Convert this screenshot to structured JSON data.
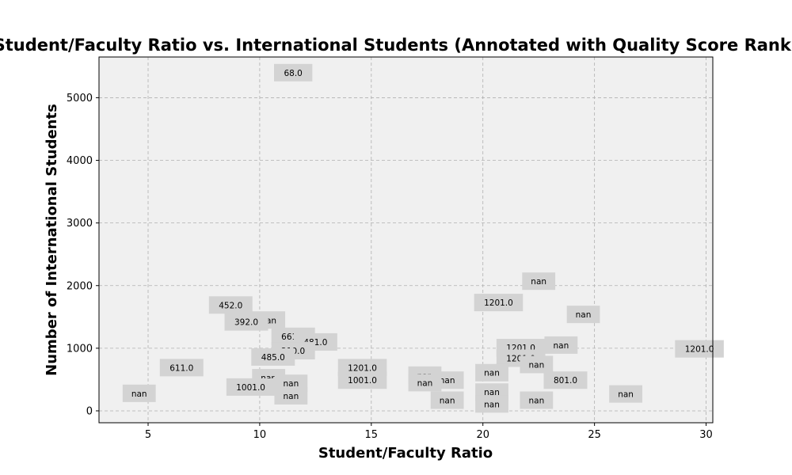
{
  "chart_data": {
    "type": "scatter",
    "title": "Student/Faculty Ratio vs. International Students (Annotated with Quality Score Rank)",
    "xlabel": "Student/Faculty Ratio",
    "ylabel": "Number of International Students",
    "xlim": [
      2.8,
      30.3
    ],
    "ylim": [
      -190,
      5650
    ],
    "xticks": [
      5,
      10,
      15,
      20,
      25,
      30
    ],
    "yticks": [
      0,
      1000,
      2000,
      3000,
      4000,
      5000
    ],
    "grid": true,
    "background_color": "#f0f0f0",
    "annotation_color": "#d3d3d3",
    "points": [
      {
        "x": 11.5,
        "y": 5400,
        "label": "68.0"
      },
      {
        "x": 22.5,
        "y": 2070,
        "label": "nan"
      },
      {
        "x": 20.7,
        "y": 1730,
        "label": "1201.0"
      },
      {
        "x": 8.7,
        "y": 1690,
        "label": "452.0"
      },
      {
        "x": 24.5,
        "y": 1540,
        "label": "nan"
      },
      {
        "x": 10.4,
        "y": 1450,
        "label": "nan"
      },
      {
        "x": 9.4,
        "y": 1420,
        "label": "392.0"
      },
      {
        "x": 11.5,
        "y": 1190,
        "label": "661.0"
      },
      {
        "x": 12.5,
        "y": 1100,
        "label": "481.0"
      },
      {
        "x": 23.5,
        "y": 1050,
        "label": "nan"
      },
      {
        "x": 21.7,
        "y": 1010,
        "label": "1201.0"
      },
      {
        "x": 29.7,
        "y": 990,
        "label": "1201.0"
      },
      {
        "x": 11.5,
        "y": 960,
        "label": "210.0"
      },
      {
        "x": 10.6,
        "y": 860,
        "label": "485.0"
      },
      {
        "x": 21.7,
        "y": 840,
        "label": "1201.0"
      },
      {
        "x": 22.4,
        "y": 740,
        "label": "nan"
      },
      {
        "x": 6.5,
        "y": 690,
        "label": "611.0"
      },
      {
        "x": 14.6,
        "y": 690,
        "label": "1201.0"
      },
      {
        "x": 20.4,
        "y": 610,
        "label": "nan"
      },
      {
        "x": 17.4,
        "y": 570,
        "label": "nan"
      },
      {
        "x": 10.4,
        "y": 530,
        "label": "nan"
      },
      {
        "x": 18.4,
        "y": 490,
        "label": "nan"
      },
      {
        "x": 23.7,
        "y": 490,
        "label": "801.0"
      },
      {
        "x": 14.6,
        "y": 490,
        "label": "1001.0"
      },
      {
        "x": 17.4,
        "y": 450,
        "label": "nan"
      },
      {
        "x": 11.4,
        "y": 440,
        "label": "nan"
      },
      {
        "x": 9.6,
        "y": 380,
        "label": "1001.0"
      },
      {
        "x": 20.4,
        "y": 300,
        "label": "nan"
      },
      {
        "x": 4.6,
        "y": 280,
        "label": "nan"
      },
      {
        "x": 26.4,
        "y": 270,
        "label": "nan"
      },
      {
        "x": 11.4,
        "y": 240,
        "label": "nan"
      },
      {
        "x": 18.4,
        "y": 170,
        "label": "nan"
      },
      {
        "x": 22.4,
        "y": 170,
        "label": "nan"
      },
      {
        "x": 20.4,
        "y": 110,
        "label": "nan"
      }
    ]
  }
}
